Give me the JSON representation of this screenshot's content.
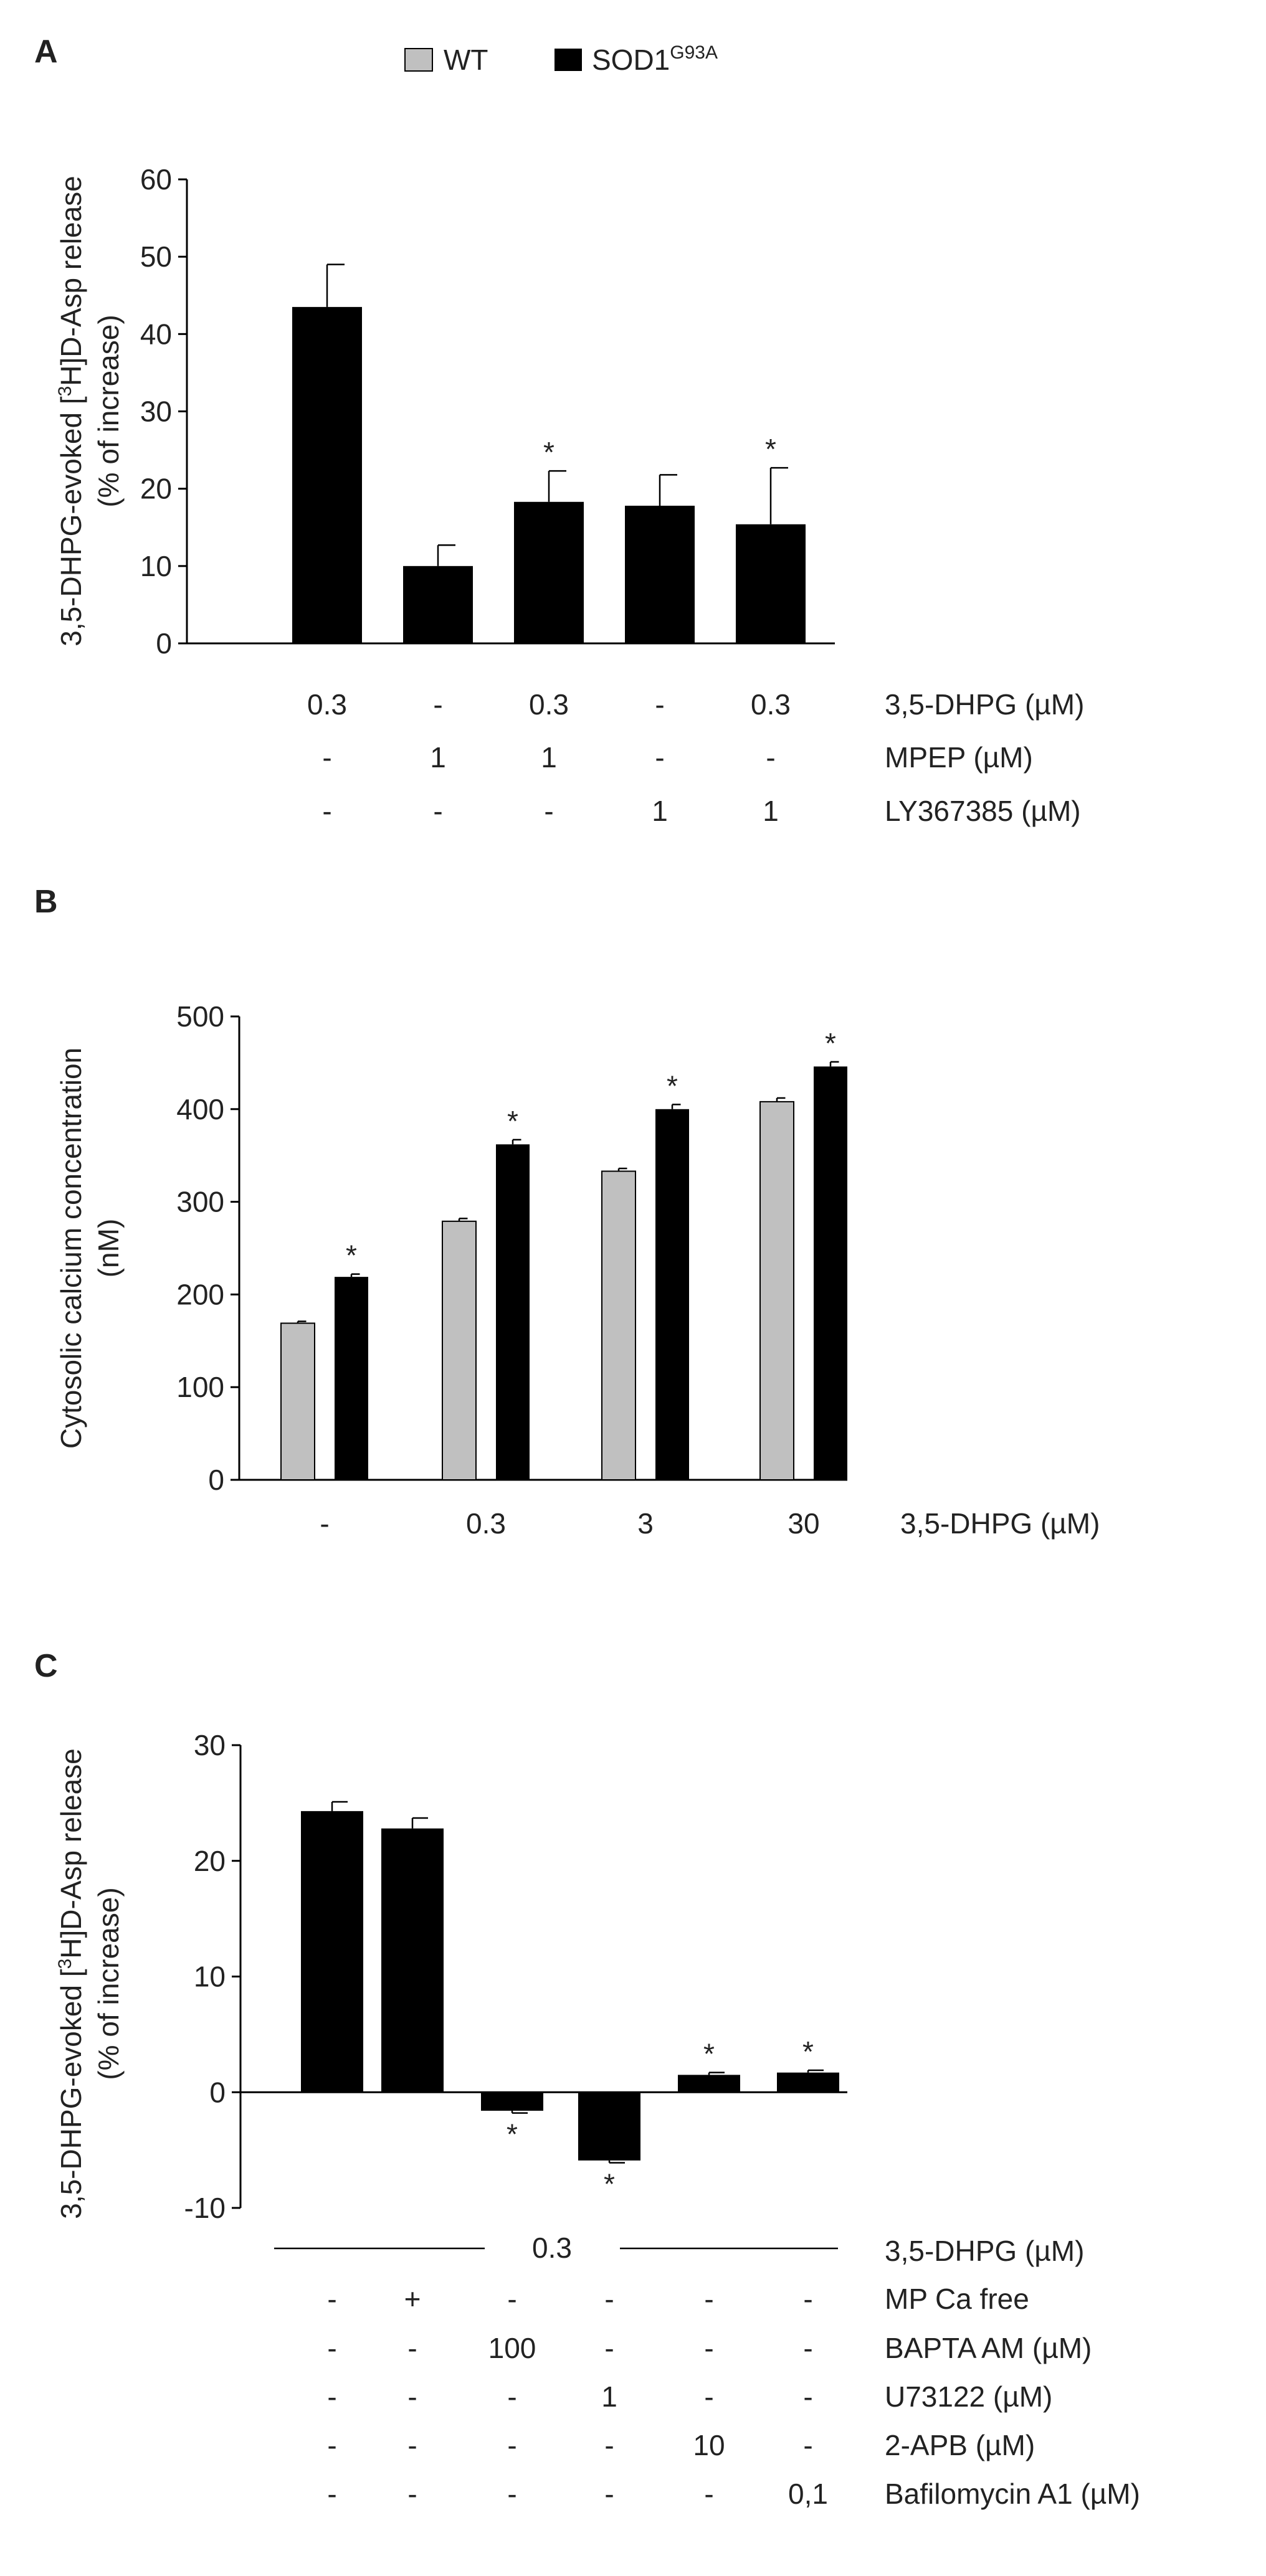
{
  "legend": {
    "items": [
      {
        "label": "WT",
        "color": "#c0c0c0"
      },
      {
        "label": "SOD1",
        "superscript": "G93A",
        "color": "#000000"
      }
    ]
  },
  "colors": {
    "wt": "#c0c0c0",
    "mutant": "#000000",
    "axis": "#000000",
    "text": "#222222"
  },
  "chart_data": [
    {
      "panel": "A",
      "type": "bar",
      "ylabel_line1_pre": "3,5-DHPG-evoked [",
      "ylabel_line1_sup": "3",
      "ylabel_line1_post": "H]D-Asp release",
      "ylabel_line2": "(% of increase)",
      "ylim": [
        0,
        60
      ],
      "yticks": [
        0,
        10,
        20,
        30,
        40,
        50,
        60
      ],
      "series": [
        {
          "name": "SOD1G93A",
          "values": [
            43.5,
            10.0,
            18.3,
            17.8,
            15.4
          ],
          "errors": [
            5.5,
            2.7,
            4.0,
            4.0,
            7.3
          ]
        }
      ],
      "significant": [
        false,
        false,
        true,
        false,
        true
      ],
      "conditions": [
        {
          "label": "3,5-DHPG (µM)",
          "values": [
            "0.3",
            "-",
            "0.3",
            "-",
            "0.3"
          ]
        },
        {
          "label": "MPEP (µM)",
          "values": [
            "-",
            "1",
            "1",
            "-",
            "-"
          ]
        },
        {
          "label": "LY367385 (µM)",
          "values": [
            "-",
            "-",
            "-",
            "1",
            "1"
          ]
        }
      ]
    },
    {
      "panel": "B",
      "type": "bar",
      "ylabel_line1": "Cytosolic calcium concentration",
      "ylabel_line2": "(nM)",
      "ylim": [
        0,
        500
      ],
      "yticks": [
        0,
        100,
        200,
        300,
        400,
        500
      ],
      "categories": [
        "-",
        "0.3",
        "3",
        "30"
      ],
      "xlabel": "3,5-DHPG (µM)",
      "series": [
        {
          "name": "WT",
          "values": [
            169,
            279,
            333,
            408
          ],
          "errors": [
            2,
            3,
            3,
            4
          ]
        },
        {
          "name": "SOD1G93A",
          "values": [
            219,
            362,
            400,
            446
          ],
          "errors": [
            3,
            5,
            5,
            5
          ]
        }
      ],
      "significant": [
        true,
        true,
        true,
        true
      ]
    },
    {
      "panel": "C",
      "type": "bar",
      "ylabel_line1_pre": "3,5-DHPG-evoked [",
      "ylabel_line1_sup": "3",
      "ylabel_line1_post": "H]D-Asp release",
      "ylabel_line2": "(% of increase)",
      "ylim": [
        -10,
        30
      ],
      "yticks": [
        -10,
        0,
        10,
        20,
        30
      ],
      "series": [
        {
          "name": "SOD1G93A",
          "values": [
            24.3,
            22.8,
            -1.6,
            -5.9,
            1.5,
            1.7
          ],
          "errors": [
            0.8,
            0.9,
            0.2,
            0.2,
            0.2,
            0.2
          ]
        }
      ],
      "significant": [
        false,
        false,
        true,
        true,
        true,
        true
      ],
      "shared_dose": "0.3",
      "shared_label": "3,5-DHPG (µM)",
      "conditions": [
        {
          "label": "MP Ca free",
          "values": [
            "-",
            "+",
            "-",
            "-",
            "-",
            "-"
          ]
        },
        {
          "label": "BAPTA AM (µM)",
          "values": [
            "-",
            "-",
            "100",
            "-",
            "-",
            "-"
          ]
        },
        {
          "label": "U73122 (µM)",
          "values": [
            "-",
            "-",
            "-",
            "1",
            "-",
            "-"
          ]
        },
        {
          "label": "2-APB (µM)",
          "values": [
            "-",
            "-",
            "-",
            "-",
            "10",
            "-"
          ]
        },
        {
          "label": "Bafilomycin A1 (µM)",
          "values": [
            "-",
            "-",
            "-",
            "-",
            "-",
            "0,1"
          ]
        }
      ]
    }
  ]
}
